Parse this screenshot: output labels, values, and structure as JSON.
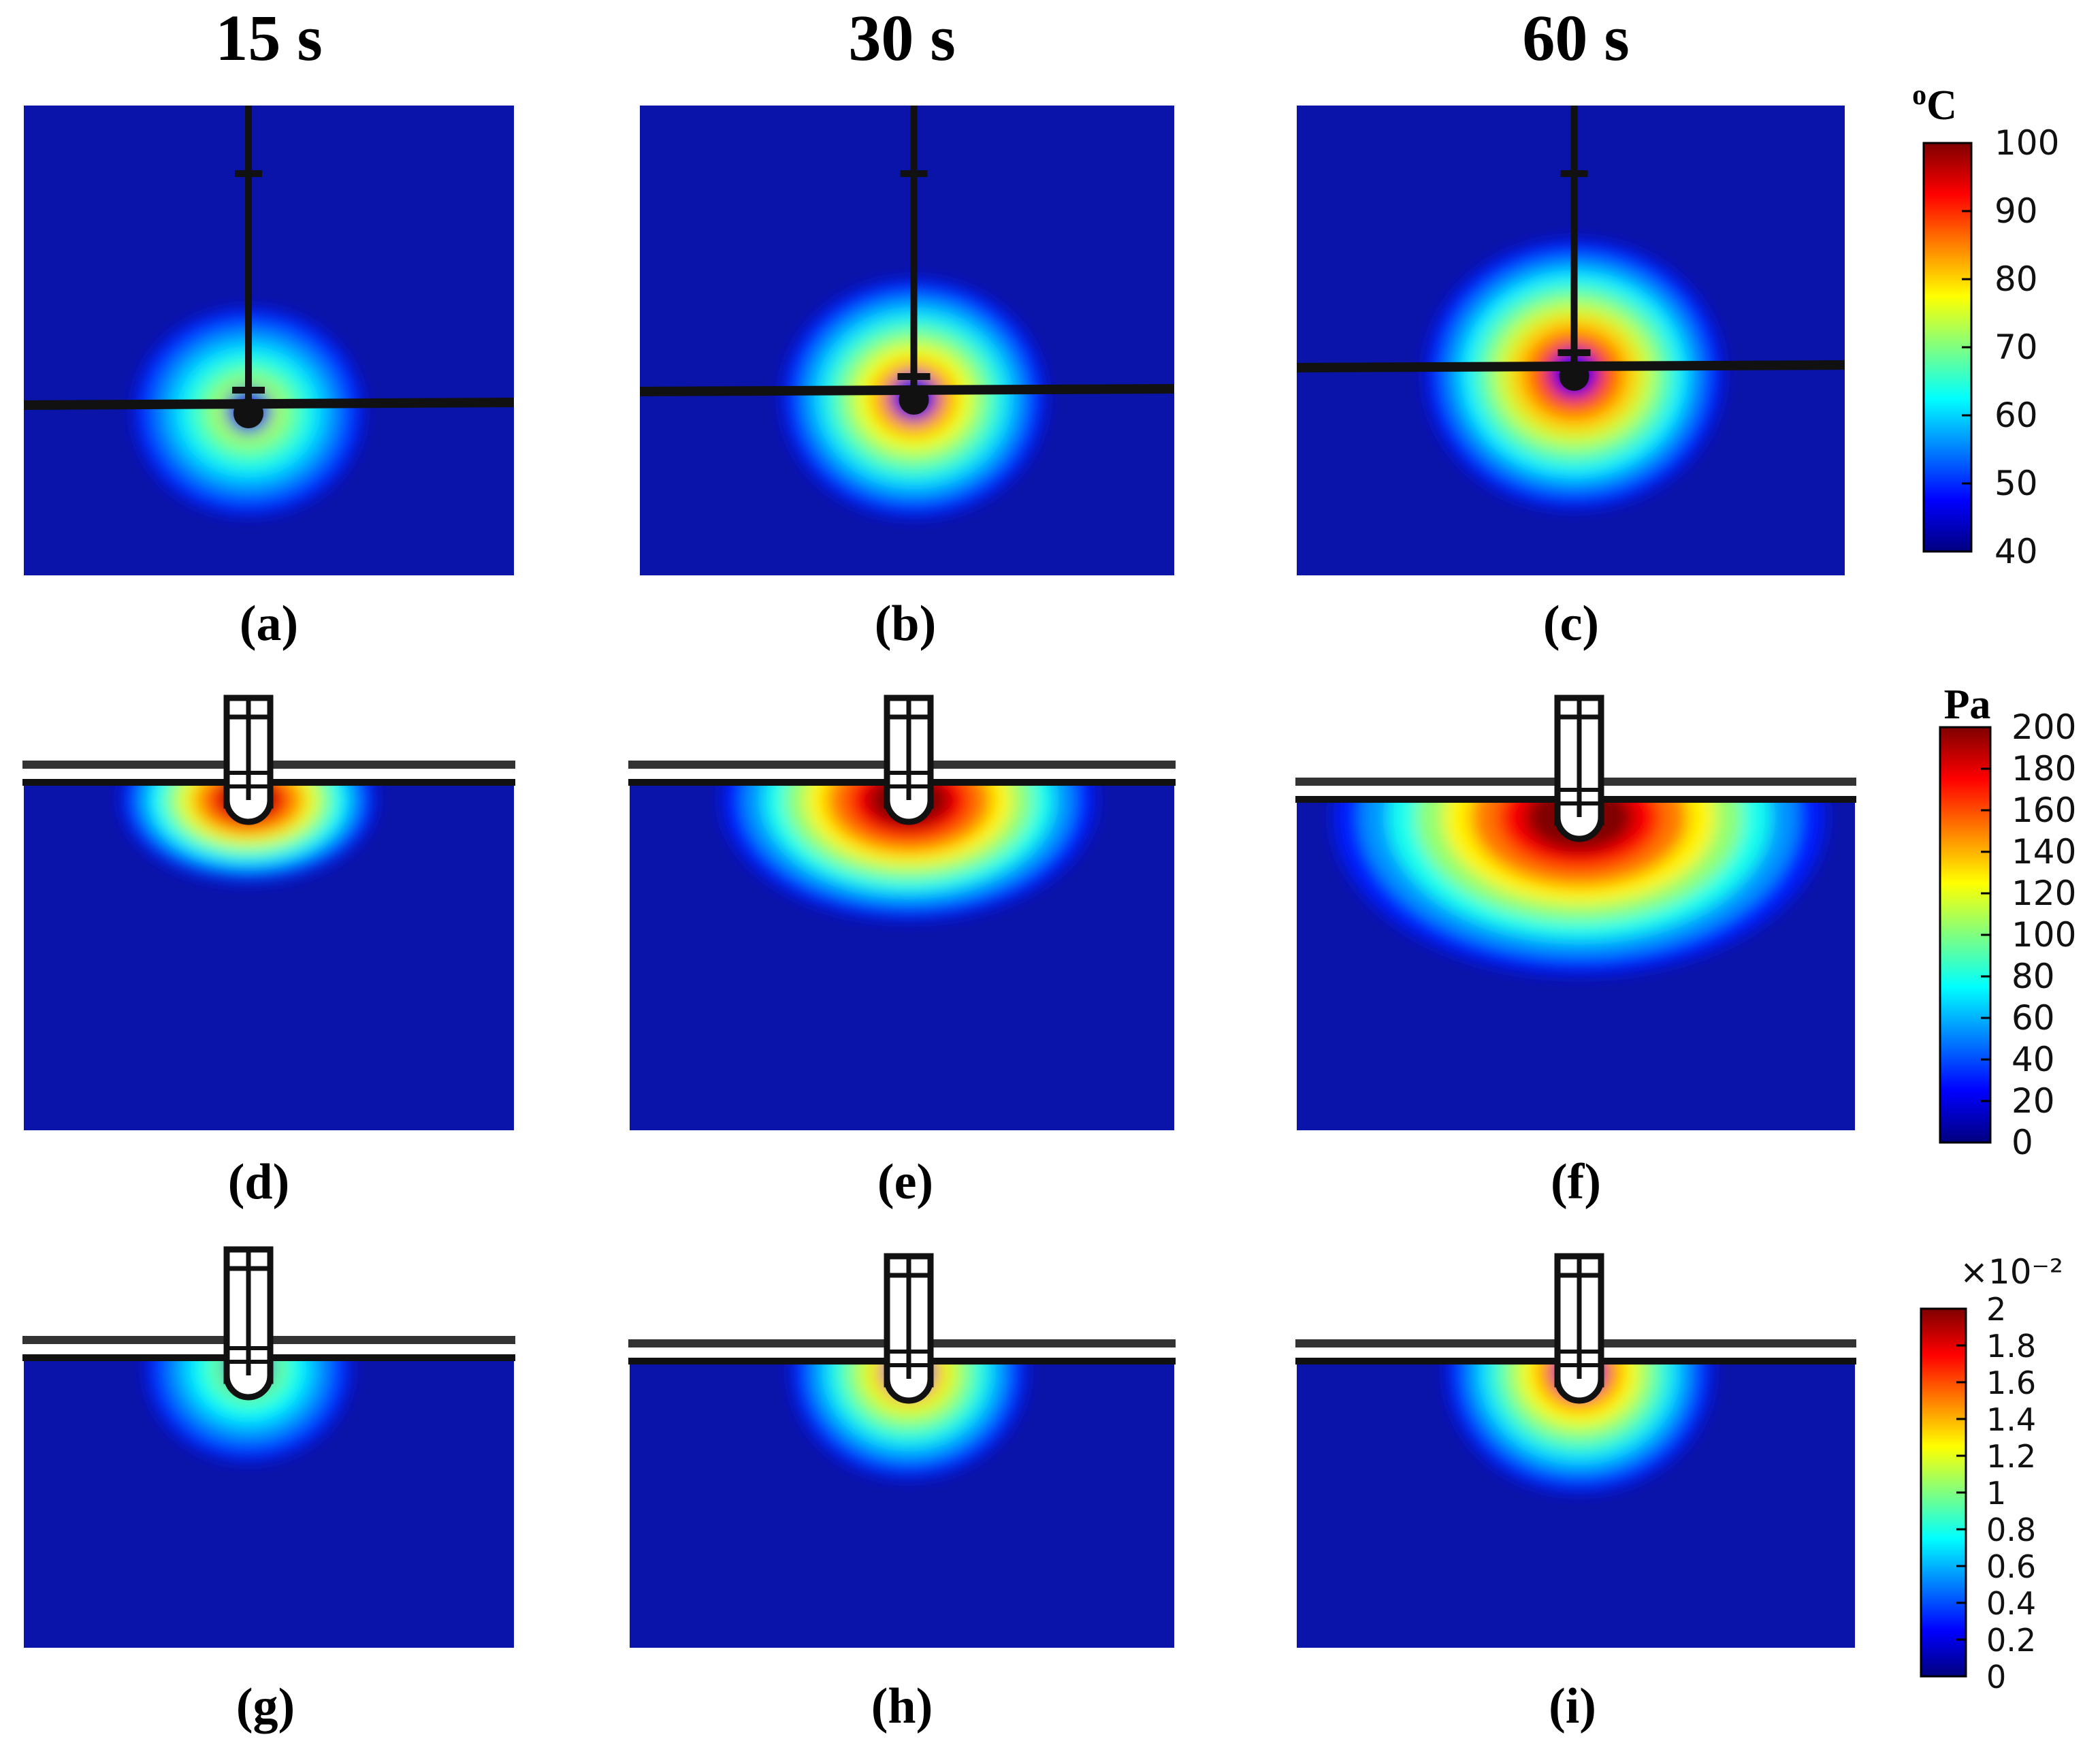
{
  "columns": [
    "15 s",
    "30 s",
    "60 s"
  ],
  "rows": [
    {
      "quantity": "temperature",
      "panels": [
        {
          "label": "(a)",
          "time": "15 s",
          "peak_fraction": 0.6
        },
        {
          "label": "(b)",
          "time": "30 s",
          "peak_fraction": 0.8
        },
        {
          "label": "(c)",
          "time": "60 s",
          "peak_fraction": 0.88
        }
      ],
      "colorbar": {
        "unit": "oC",
        "unit_base": "C",
        "unit_superscript": "o",
        "ticks": [
          "100",
          "90",
          "80",
          "70",
          "60",
          "50",
          "40"
        ],
        "min": 40,
        "max": 100
      }
    },
    {
      "quantity": "pressure",
      "panels": [
        {
          "label": "(d)",
          "time": "15 s",
          "peak_fraction": 0.95
        },
        {
          "label": "(e)",
          "time": "30 s",
          "peak_fraction": 1.0
        },
        {
          "label": "(f)",
          "time": "60 s",
          "peak_fraction": 1.0
        }
      ],
      "colorbar": {
        "unit": "Pa",
        "ticks": [
          "200",
          "180",
          "160",
          "140",
          "120",
          "100",
          "80",
          "60",
          "40",
          "20",
          "0"
        ],
        "min": 0,
        "max": 200
      }
    },
    {
      "quantity": "dimensionless",
      "panels": [
        {
          "label": "(g)",
          "time": "15 s",
          "peak_fraction": 0.55
        },
        {
          "label": "(h)",
          "time": "30 s",
          "peak_fraction": 0.75
        },
        {
          "label": "(i)",
          "time": "60 s",
          "peak_fraction": 0.82
        }
      ],
      "colorbar": {
        "unit": "×10⁻²",
        "ticks": [
          "2",
          "1.8",
          "1.6",
          "1.4",
          "1.2",
          "1",
          "0.8",
          "0.6",
          "0.4",
          "0.2",
          "0"
        ],
        "min": 0,
        "max": 2
      }
    }
  ],
  "colors": {
    "jet": [
      "#00007f",
      "#0000ff",
      "#0080ff",
      "#00ffff",
      "#80ff80",
      "#ffff00",
      "#ff8000",
      "#ff0000",
      "#7f0000"
    ],
    "background_field": "#0a14a8",
    "electrode": "#111111"
  }
}
